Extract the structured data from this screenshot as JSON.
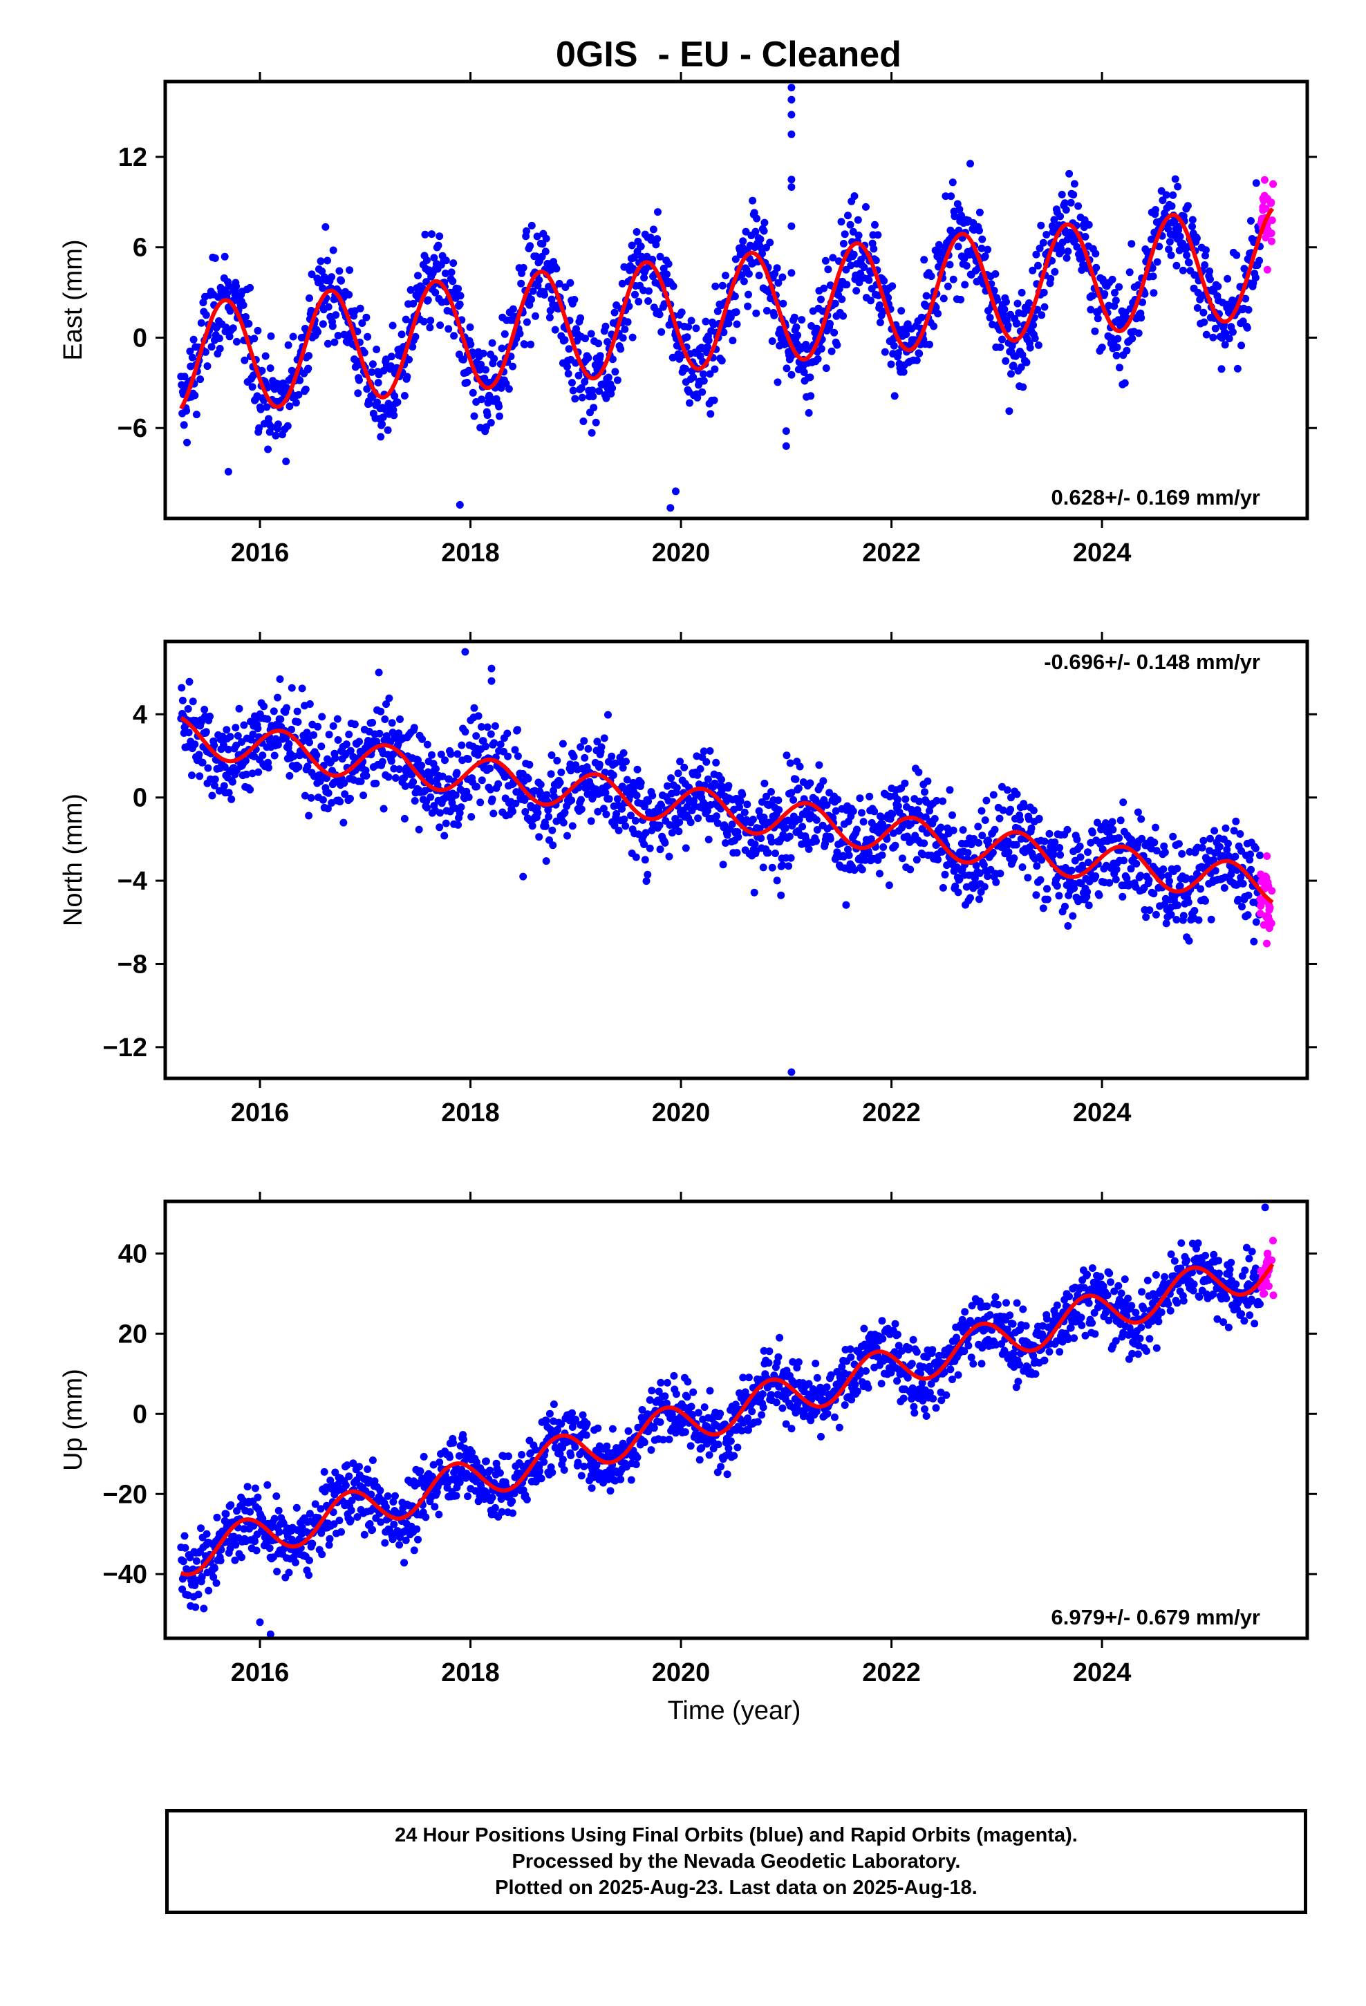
{
  "title": "0GIS  - EU - Cleaned",
  "xlabel": "Time (year)",
  "footer": {
    "lines": [
      "24 Hour Positions Using Final Orbits (blue) and Rapid Orbits (magenta).",
      "Processed by the Nevada Geodetic Laboratory.",
      "Plotted on 2025-Aug-23. Last data on 2025-Aug-18."
    ]
  },
  "colors": {
    "final_orbits": "#0000ff",
    "rapid_orbits": "#ff00ff",
    "model_fit": "#ff0000",
    "axes": "#000000"
  },
  "chart_data": [
    {
      "type": "scatter",
      "panel": "east",
      "ylabel": "East (mm)",
      "rate_label": "0.628+/- 0.169 mm/yr",
      "rate_label_position": "bottom-right",
      "xlim": [
        2015.1,
        2025.95
      ],
      "ylim": [
        -12,
        17
      ],
      "xticks": [
        2016,
        2018,
        2020,
        2022,
        2024
      ],
      "yticks": [
        -6,
        0,
        6,
        12
      ],
      "model": {
        "intercept_2015_2": -1.5,
        "rate": 0.628,
        "seasonal_amplitude": 3.7,
        "seasonal_phase_year": 0.42
      },
      "scatter_spread_mm": 1.6,
      "final_range": [
        2015.25,
        2025.5
      ],
      "rapid_range": [
        2025.5,
        2025.63
      ],
      "outliers": [
        {
          "x": 2021.05,
          "y": 16.6
        },
        {
          "x": 2021.05,
          "y": 15.8
        },
        {
          "x": 2021.05,
          "y": 14.8
        },
        {
          "x": 2021.05,
          "y": 13.5
        },
        {
          "x": 2021.05,
          "y": 10.5
        },
        {
          "x": 2021.05,
          "y": 10.0
        },
        {
          "x": 2021.05,
          "y": 7.4
        },
        {
          "x": 2021.05,
          "y": 4.3
        },
        {
          "x": 2021.0,
          "y": -6.2
        },
        {
          "x": 2021.0,
          "y": -7.2
        },
        {
          "x": 2019.9,
          "y": -11.3
        },
        {
          "x": 2019.95,
          "y": -10.2
        },
        {
          "x": 2017.9,
          "y": -11.1
        },
        {
          "x": 2015.7,
          "y": -8.9
        }
      ]
    },
    {
      "type": "scatter",
      "panel": "north",
      "ylabel": "North (mm)",
      "rate_label": "-0.696+/- 0.148 mm/yr",
      "rate_label_position": "top-right",
      "xlim": [
        2015.1,
        2025.95
      ],
      "ylim": [
        -13.5,
        7.5
      ],
      "xticks": [
        2016,
        2018,
        2020,
        2022,
        2024
      ],
      "yticks": [
        -12,
        -8,
        -4,
        0,
        4
      ],
      "model": {
        "intercept_2015_2": 3.0,
        "rate": -0.696,
        "seasonal_amplitude": 0.9,
        "seasonal_phase_year": 0.95
      },
      "scatter_spread_mm": 1.1,
      "final_range": [
        2015.25,
        2025.5
      ],
      "rapid_range": [
        2025.5,
        2025.63
      ],
      "outliers": [
        {
          "x": 2017.95,
          "y": 7.0
        },
        {
          "x": 2018.2,
          "y": 6.2
        },
        {
          "x": 2018.2,
          "y": 5.6
        },
        {
          "x": 2021.05,
          "y": -13.2
        },
        {
          "x": 2020.95,
          "y": -4.7
        },
        {
          "x": 2018.5,
          "y": -3.8
        }
      ]
    },
    {
      "type": "scatter",
      "panel": "up",
      "ylabel": "Up (mm)",
      "rate_label": "6.979+/- 0.679 mm/yr",
      "rate_label_position": "bottom-right",
      "xlim": [
        2015.1,
        2025.95
      ],
      "ylim": [
        -56,
        53
      ],
      "xticks": [
        2016,
        2018,
        2020,
        2022,
        2024
      ],
      "yticks": [
        -40,
        -20,
        0,
        20,
        40
      ],
      "model": {
        "intercept_2015_2": -36.0,
        "rate": 6.979,
        "seasonal_amplitude": 5.0,
        "seasonal_phase_year": 0.6
      },
      "scatter_spread_mm": 4.2,
      "final_range": [
        2015.25,
        2025.5
      ],
      "rapid_range": [
        2025.5,
        2025.63
      ],
      "outliers": [
        {
          "x": 2016.1,
          "y": -55.0
        },
        {
          "x": 2016.0,
          "y": -52.0
        },
        {
          "x": 2025.55,
          "y": 51.5
        }
      ]
    }
  ]
}
